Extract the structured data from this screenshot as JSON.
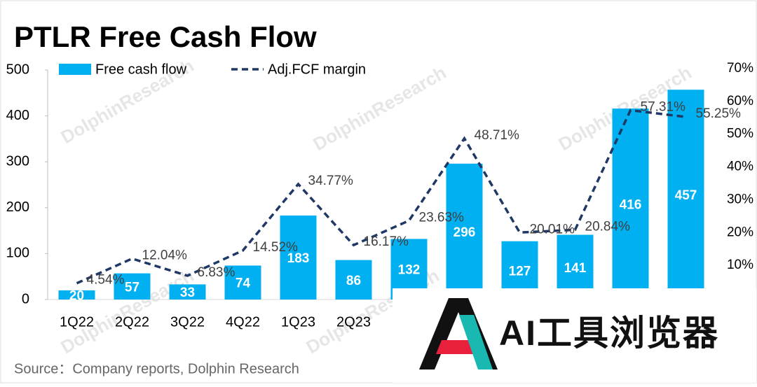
{
  "chart_data": {
    "type": "bar",
    "title": "PTLR Free Cash Flow",
    "categories": [
      "1Q22",
      "2Q22",
      "3Q22",
      "4Q22",
      "1Q23",
      "2Q23",
      null,
      null,
      null,
      null,
      null,
      null
    ],
    "series": [
      {
        "name": "Free cash flow",
        "color": "#00b0f0",
        "values": [
          20,
          57,
          33,
          74,
          183,
          86,
          132,
          296,
          127,
          141,
          416,
          457
        ]
      },
      {
        "name": "Adj.FCF margin",
        "type": "line",
        "axis": "y2",
        "color": "#1f3864",
        "values": [
          4.54,
          12.04,
          6.83,
          14.52,
          34.77,
          16.17,
          23.63,
          48.71,
          20.01,
          20.84,
          57.31,
          55.25
        ],
        "value_labels": [
          "4.54%",
          "12.04%",
          "6.83%",
          "14.52%",
          "34.77%",
          "16.17%",
          "23.63%",
          "48.71%",
          "20.01%",
          "20.84%",
          "57.31%",
          "55.25%"
        ]
      }
    ],
    "ylim": [
      0,
      500
    ],
    "yticks": [
      0,
      100,
      200,
      300,
      400,
      500
    ],
    "y2lim": [
      0,
      70
    ],
    "y2ticks": [
      {
        "value": 10,
        "label": "10%"
      },
      {
        "value": 20,
        "label": "20%"
      },
      {
        "value": 30,
        "label": "30%"
      },
      {
        "value": 40,
        "label": "40%"
      },
      {
        "value": 50,
        "label": "50%"
      },
      {
        "value": 60,
        "label": "60%"
      },
      {
        "value": 70,
        "label": "70%"
      }
    ],
    "legend": "top-left",
    "source": "Source：Company reports, Dolphin Research",
    "watermark": "DolphinResearch",
    "logo_text": "AI工具浏览器"
  }
}
